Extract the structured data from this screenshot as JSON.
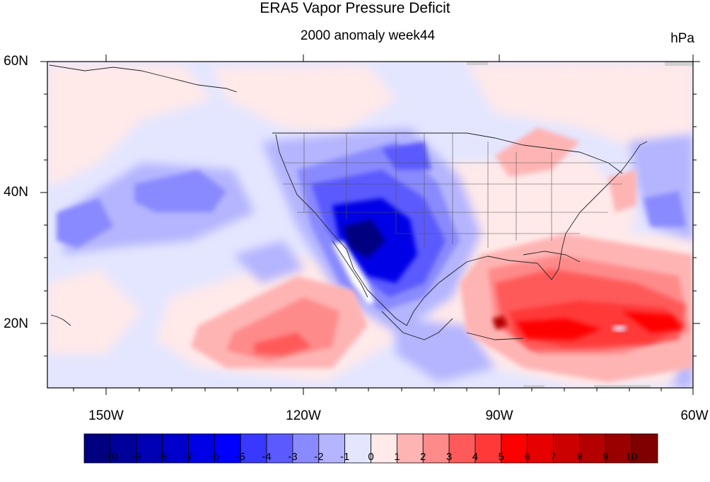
{
  "title": "ERA5 Vapor Pressure Deficit",
  "subtitle": "2000 anomaly week44",
  "units": "hPa",
  "lat_ticks": [
    "60N",
    "40N",
    "20N"
  ],
  "lon_ticks": [
    "150W",
    "120W",
    "90W",
    "60W"
  ],
  "colorbar": {
    "labels": [
      "-10",
      "-9",
      "-8",
      "-7",
      "-6",
      "-5",
      "-4",
      "-3",
      "-2",
      "-1",
      "0",
      "1",
      "2",
      "3",
      "4",
      "5",
      "6",
      "7",
      "8",
      "9",
      "10"
    ],
    "colors": [
      "#000080",
      "#00009a",
      "#0000b4",
      "#0000cc",
      "#0000e6",
      "#0000ff",
      "#3838ff",
      "#5a5aff",
      "#8a8aff",
      "#b4b4ff",
      "#e4e6ff",
      "#ffe9e9",
      "#ffb4b4",
      "#ff8a8a",
      "#ff5a5a",
      "#ff3838",
      "#ff0000",
      "#e60000",
      "#cc0000",
      "#b40000",
      "#9a0000",
      "#800000"
    ]
  },
  "map": {
    "projection": "equidistant cylindrical",
    "lat_range": [
      "10N",
      "60N"
    ],
    "lon_range": [
      "160W",
      "60W"
    ],
    "variable": "Vapor Pressure Deficit anomaly",
    "regions": [
      {
        "name": "southwest-us-negative-anomaly",
        "value": -7
      },
      {
        "name": "caribbean-positive-anomaly",
        "value": 7
      },
      {
        "name": "pacific-positive-anomaly",
        "value": 4
      }
    ]
  }
}
